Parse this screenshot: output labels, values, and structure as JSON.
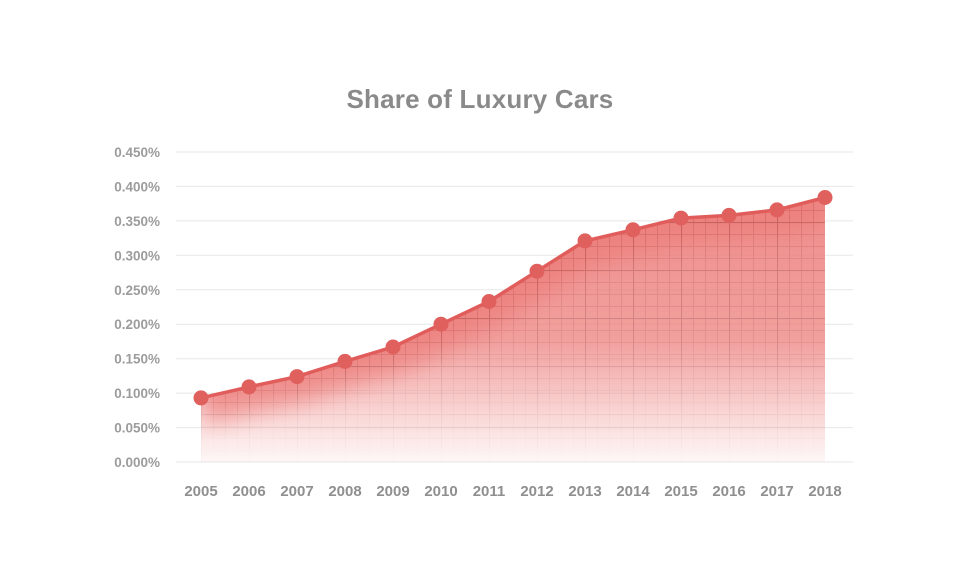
{
  "page": {
    "background": "#ffffff"
  },
  "chart_data": {
    "type": "area",
    "title": "Share of Luxury Cars",
    "categories": [
      "2005",
      "2006",
      "2007",
      "2008",
      "2009",
      "2010",
      "2011",
      "2012",
      "2013",
      "2014",
      "2015",
      "2016",
      "2017",
      "2018"
    ],
    "series": [
      {
        "name": "Share of Luxury Cars",
        "unit": "%",
        "values": [
          0.093,
          0.109,
          0.124,
          0.146,
          0.167,
          0.2,
          0.233,
          0.277,
          0.321,
          0.337,
          0.354,
          0.358,
          0.366,
          0.384
        ]
      }
    ],
    "xlabel": "",
    "ylabel": "",
    "ylim": [
      0,
      0.45
    ],
    "y_tick_step": 0.05,
    "y_tick_labels": [
      "0.000%",
      "0.050%",
      "0.100%",
      "0.150%",
      "0.200%",
      "0.250%",
      "0.300%",
      "0.350%",
      "0.400%",
      "0.450%"
    ],
    "grid": "horizontal-only",
    "legend": "none",
    "marker": "circle",
    "area_style": "red fill with graph-paper texture fading to white toward the bottom",
    "colors": {
      "line": "#e05d5b",
      "marker": "#e0605e",
      "area_fill": "#ec7b78",
      "area_texture_minor": "#b34341",
      "area_texture_major": "#a03c3a",
      "gridline": "#e7e7e7",
      "y_tick_text": "#9c9c9c",
      "x_tick_text": "#8f8f8f",
      "title_text": "#8a8a8a",
      "background": "#ffffff"
    }
  }
}
